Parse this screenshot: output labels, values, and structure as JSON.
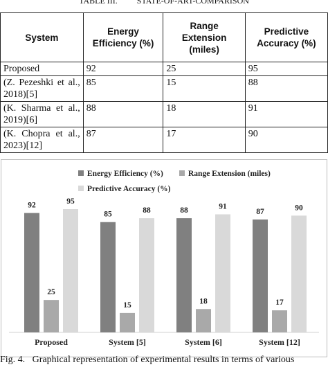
{
  "table_title": "TABLE III.",
  "table_subtitle": "STATE-OF-ART-COMPARISON",
  "table": {
    "header": [
      "System",
      "Energy Efficiency (%)",
      "Range Extension (miles)",
      "Predictive Accuracy (%)"
    ],
    "rows": [
      [
        "Proposed",
        "92",
        "25",
        "95"
      ],
      [
        "(Z. Pezeshki et al., 2018)[5]",
        "85",
        "15",
        "88"
      ],
      [
        "(K. Sharma et al., 2019)[6]",
        "88",
        "18",
        "91"
      ],
      [
        "(K. Chopra et al., 2023)[12]",
        "87",
        "17",
        "90"
      ]
    ]
  },
  "chart_data": {
    "type": "bar",
    "categories": [
      "Proposed",
      "System [5]",
      "System [6]",
      "System [12]"
    ],
    "series": [
      {
        "name": "Energy Efficiency (%)",
        "color": "#808080",
        "values": [
          92,
          85,
          88,
          87
        ]
      },
      {
        "name": "Range Extension (miles)",
        "color": "#a9a9a9",
        "values": [
          25,
          15,
          18,
          17
        ]
      },
      {
        "name": "Predictive Accuracy (%)",
        "color": "#d9d9d9",
        "values": [
          95,
          88,
          91,
          90
        ]
      }
    ]
  },
  "caption": "Fig. 4.   Graphical representation of experimental results in terms of various"
}
